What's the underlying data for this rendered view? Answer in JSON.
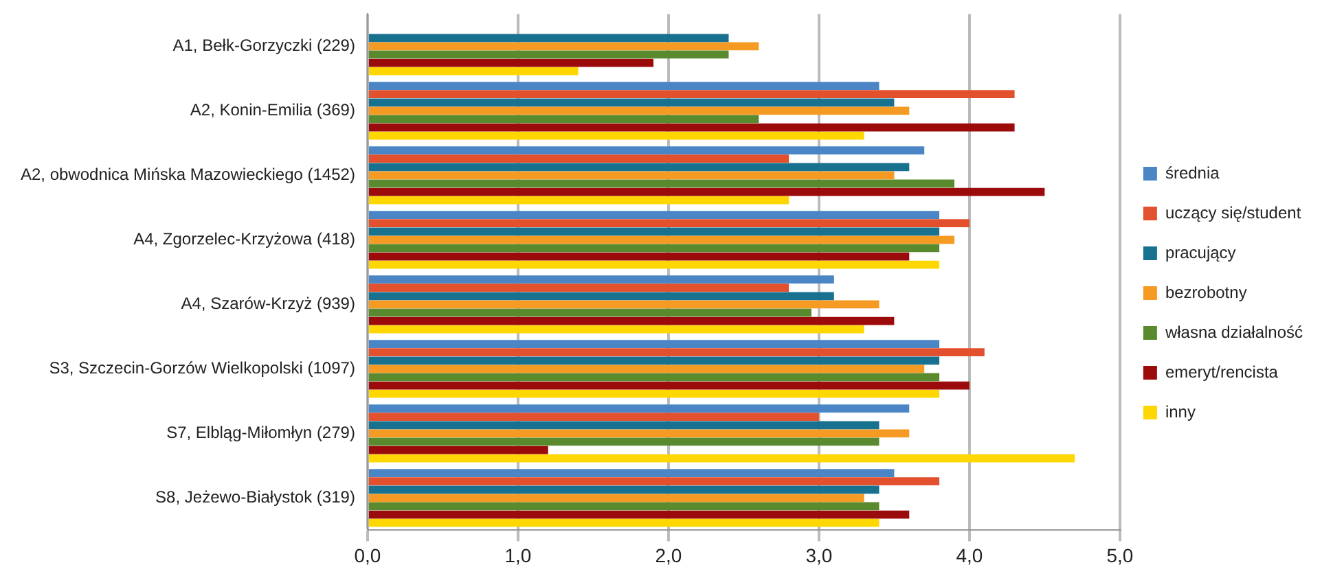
{
  "chart_data": {
    "type": "bar",
    "orientation": "horizontal",
    "categories": [
      "A1, Bełk-Gorzyczki (229)",
      "A2, Konin-Emilia (369)",
      "A2, obwodnica Mińska Mazowieckiego (1452)",
      "A4, Zgorzelec-Krzyżowa (418)",
      "A4, Szarów-Krzyż (939)",
      "S3, Szczecin-Gorzów Wielkopolski (1097)",
      "S7, Elbląg-Miłomłyn (279)",
      "S8, Jeżewo-Białystok (319)"
    ],
    "series": [
      {
        "name": "średnia",
        "color": "#4a86c6",
        "values": [
          null,
          3.4,
          3.7,
          3.8,
          3.1,
          3.8,
          3.6,
          3.5
        ]
      },
      {
        "name": "uczący się/student",
        "color": "#e2502e",
        "values": [
          null,
          4.3,
          2.8,
          4.0,
          2.8,
          4.1,
          3.0,
          3.8
        ]
      },
      {
        "name": "pracujący",
        "color": "#17718f",
        "values": [
          2.4,
          3.5,
          3.6,
          3.8,
          3.1,
          3.8,
          3.4,
          3.4
        ]
      },
      {
        "name": "bezrobotny",
        "color": "#f59a23",
        "values": [
          2.6,
          3.6,
          3.5,
          3.9,
          3.4,
          3.7,
          3.6,
          3.3
        ]
      },
      {
        "name": "własna działalność",
        "color": "#5a8a2e",
        "values": [
          2.4,
          2.6,
          3.9,
          3.8,
          2.95,
          3.8,
          3.4,
          3.4
        ]
      },
      {
        "name": "emeryt/rencista",
        "color": "#9c0b0b",
        "values": [
          1.9,
          4.3,
          4.5,
          3.6,
          3.5,
          4.0,
          1.2,
          3.6
        ]
      },
      {
        "name": "inny",
        "color": "#ffd700",
        "values": [
          1.4,
          3.3,
          2.8,
          3.8,
          3.3,
          3.8,
          4.7,
          3.4
        ]
      }
    ],
    "xlim": [
      0,
      5
    ],
    "xticks": [
      {
        "value": 0,
        "label": "0,0"
      },
      {
        "value": 1,
        "label": "1,0"
      },
      {
        "value": 2,
        "label": "2,0"
      },
      {
        "value": 3,
        "label": "3,0"
      },
      {
        "value": 4,
        "label": "4,0"
      },
      {
        "value": 5,
        "label": "5,0"
      }
    ],
    "grid": "x",
    "legend": "right"
  }
}
